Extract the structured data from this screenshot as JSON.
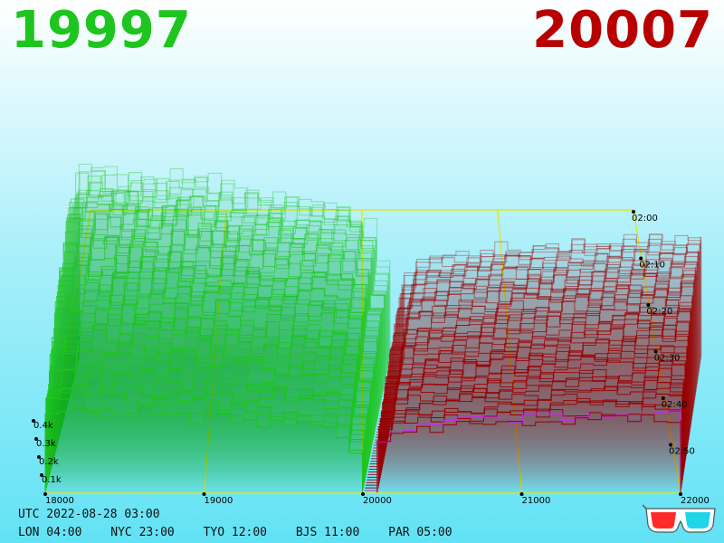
{
  "header": {
    "bid_price": "19997",
    "ask_price": "20007",
    "bid_color": "#1ec51e",
    "ask_color": "#b80000"
  },
  "clock": {
    "utc": "UTC 2022-08-28 03:00",
    "cities": [
      "LON 04:00",
      "NYC 23:00",
      "TYO 12:00",
      "BJS 11:00",
      "PAR 05:00"
    ]
  },
  "chart_data": {
    "type": "area",
    "subtype": "3d-order-book-depth-waterfall",
    "x_axis": {
      "ticks": [
        18000,
        19000,
        20000,
        21000,
        22000
      ],
      "labels": [
        "18000",
        "19000",
        "20000",
        "21000",
        "22000"
      ],
      "range": [
        18000,
        22000
      ]
    },
    "z_axis": {
      "ticks": [
        "0.1k",
        "0.2k",
        "0.3k",
        "0.4k"
      ],
      "values": [
        100,
        200,
        300,
        400
      ]
    },
    "time_axis": {
      "labels": [
        "02:00",
        "02:10",
        "02:20",
        "02:30",
        "02:40",
        "02:50"
      ]
    },
    "series": [
      {
        "side": "bid",
        "color": "#1ec51e",
        "price_range": [
          18000,
          19997
        ]
      },
      {
        "side": "ask",
        "color": "#9b0000",
        "price_range": [
          20007,
          22000
        ]
      }
    ],
    "highlight_color": "#cc22ff",
    "grid_color": "#e6e600",
    "snapshot_count": 52,
    "depth_profile": {
      "bid": [
        [
          18000,
          680
        ],
        [
          18200,
          660
        ],
        [
          18400,
          650
        ],
        [
          18600,
          640
        ],
        [
          18800,
          630
        ],
        [
          19000,
          600
        ],
        [
          19200,
          580
        ],
        [
          19400,
          560
        ],
        [
          19600,
          540
        ],
        [
          19800,
          520
        ],
        [
          19950,
          260
        ],
        [
          19997,
          0
        ]
      ],
      "ask": [
        [
          20007,
          0
        ],
        [
          20030,
          120
        ],
        [
          20100,
          260
        ],
        [
          20200,
          300
        ],
        [
          20500,
          320
        ],
        [
          21000,
          340
        ],
        [
          21500,
          350
        ],
        [
          22000,
          360
        ]
      ]
    }
  },
  "icons": {
    "glasses": "3d-glasses-icon"
  }
}
